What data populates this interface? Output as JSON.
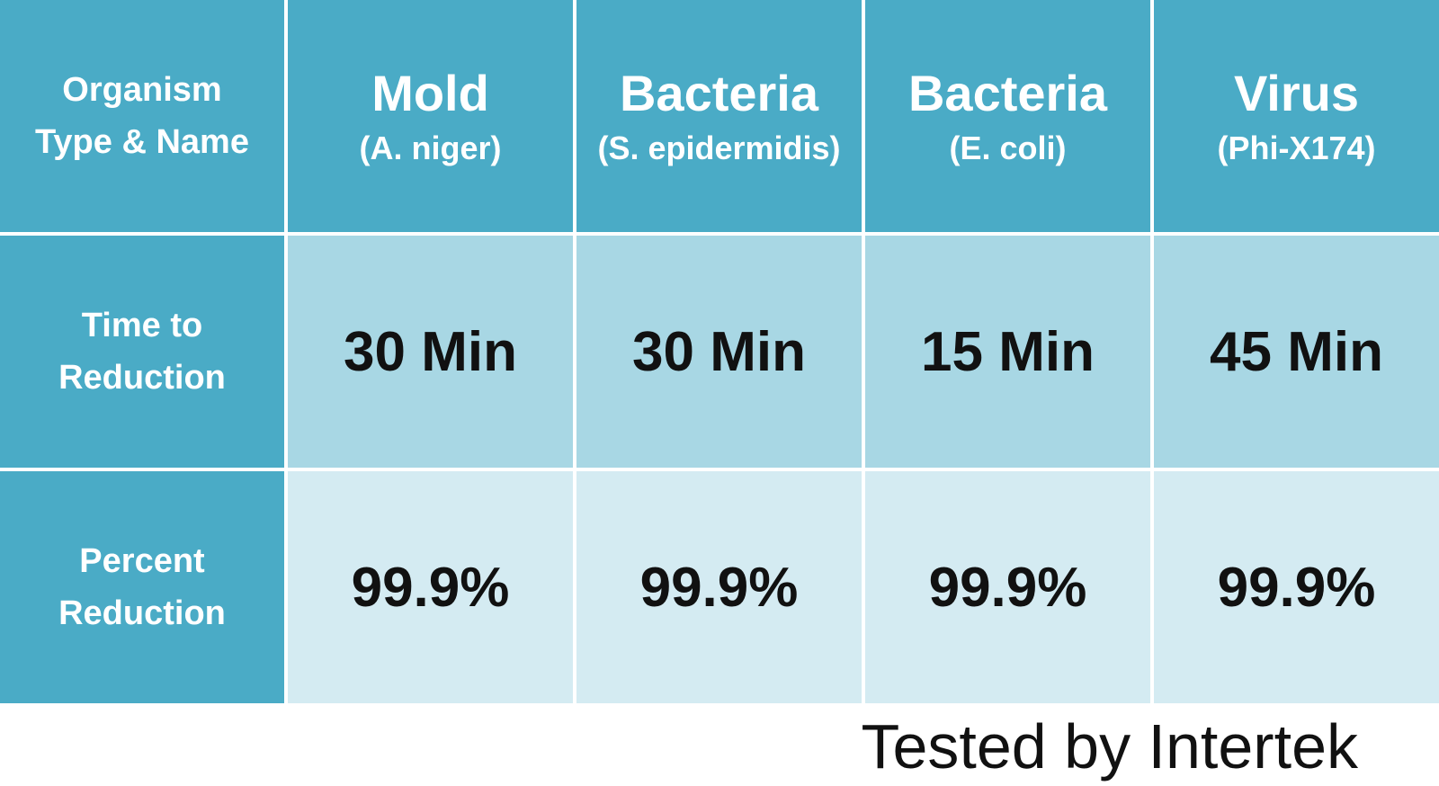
{
  "table": {
    "header": {
      "label": "Organism Type & Name",
      "organisms": [
        {
          "name": "Mold",
          "detail": "(A. niger)"
        },
        {
          "name": "Bacteria",
          "detail": "(S. epidermidis)"
        },
        {
          "name": "Bacteria",
          "detail": "(E. coli)"
        },
        {
          "name": "Virus",
          "detail": "(Phi-X174)"
        }
      ]
    },
    "rows": [
      {
        "label": "Time to Reduction",
        "values": [
          "30 Min",
          "30 Min",
          "15 Min",
          "45 Min"
        ]
      },
      {
        "label": "Percent Reduction",
        "values": [
          "99.9%",
          "99.9%",
          "99.9%",
          "99.9%"
        ]
      }
    ]
  },
  "footer": "Tested by Intertek"
}
